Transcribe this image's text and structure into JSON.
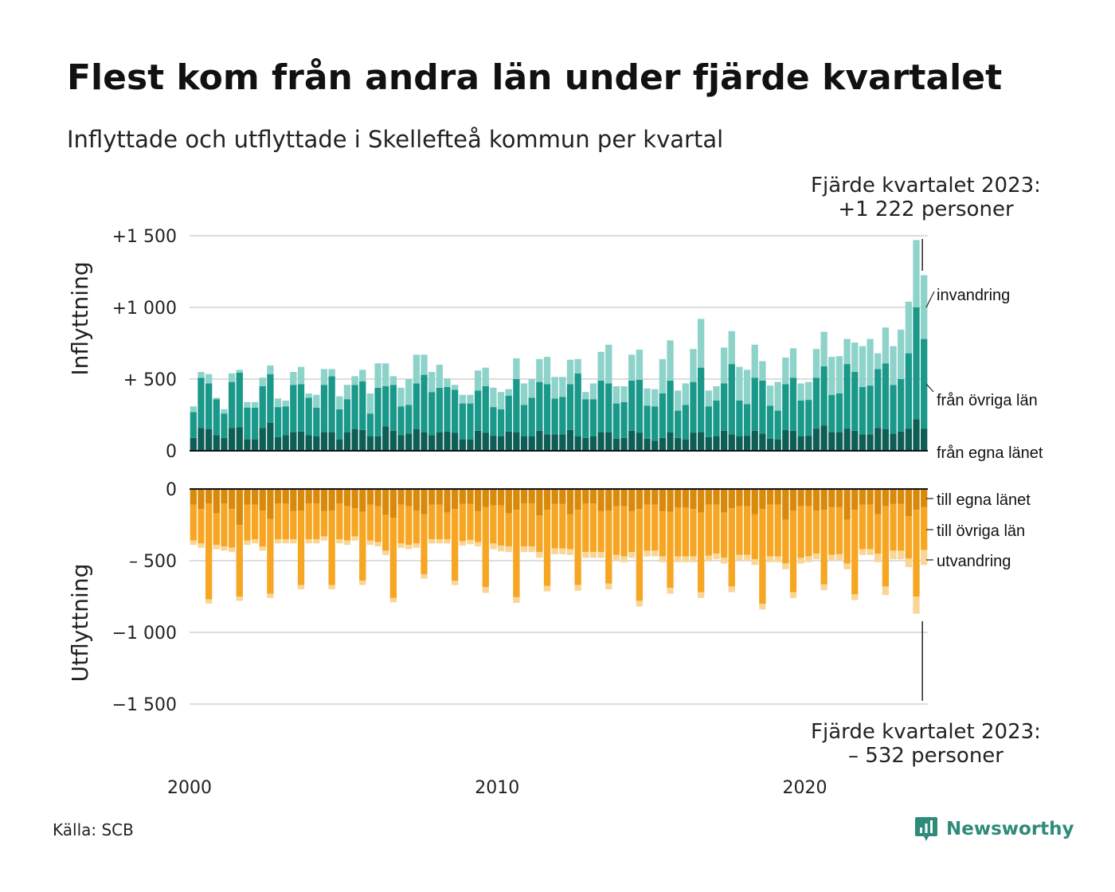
{
  "title": "Flest kom från andra län under fjärde kvartalet",
  "subtitle": "Inflyttade och utflyttade i Skellefteå kommun per kvartal",
  "source": "Källa: SCB",
  "brand": "Newsworthy",
  "annotation_top": {
    "line1": "Fjärde kvartalet 2023:",
    "line2": "+1 222 personer"
  },
  "annotation_bottom": {
    "line1": "Fjärde kvartalet 2023:",
    "line2": "–  532 personer"
  },
  "colors": {
    "in_own": "#0e5e55",
    "in_other": "#1a988a",
    "in_immigration": "#8dd3ca",
    "out_own": "#d98a0b",
    "out_other": "#f6a623",
    "out_emigration": "#f9d596",
    "grid": "#dddddd",
    "axis": "#111111"
  },
  "chart_data": {
    "type": "bar",
    "stacked": true,
    "x_ticks": [
      "2000",
      "2010",
      "2020"
    ],
    "x_start": "2000 Q1",
    "x_end": "2023 Q4",
    "panels": [
      {
        "name": "Inflyttning",
        "ylabel": "Inflyttning",
        "ylim": [
          0,
          1500
        ],
        "y_ticks": [
          0,
          500,
          1000,
          1500
        ],
        "y_tick_labels": [
          "0",
          "+  500",
          "+1 000",
          "+1 500"
        ],
        "series": [
          {
            "name": "från egna länet",
            "values": [
              90,
              160,
              150,
              110,
              90,
              160,
              165,
              80,
              80,
              160,
              195,
              95,
              110,
              130,
              135,
              110,
              100,
              130,
              130,
              80,
              130,
              150,
              145,
              100,
              100,
              170,
              140,
              110,
              120,
              150,
              130,
              110,
              130,
              135,
              125,
              80,
              80,
              140,
              125,
              105,
              100,
              135,
              130,
              100,
              100,
              140,
              115,
              115,
              115,
              145,
              100,
              90,
              100,
              130,
              130,
              85,
              90,
              140,
              125,
              85,
              70,
              90,
              130,
              90,
              80,
              125,
              130,
              95,
              100,
              140,
              115,
              100,
              105,
              140,
              120,
              85,
              80,
              145,
              140,
              100,
              105,
              155,
              175,
              130,
              130,
              155,
              140,
              115,
              115,
              160,
              150,
              120,
              135,
              155,
              220,
              155
            ]
          },
          {
            "name": "från övriga län",
            "values": [
              180,
              350,
              320,
              250,
              170,
              320,
              380,
              220,
              220,
              290,
              340,
              210,
              200,
              330,
              330,
              260,
              200,
              330,
              390,
              210,
              230,
              310,
              340,
              160,
              340,
              280,
              320,
              200,
              200,
              320,
              400,
              300,
              310,
              310,
              300,
              250,
              250,
              280,
              325,
              200,
              190,
              250,
              370,
              220,
              270,
              340,
              350,
              250,
              260,
              320,
              440,
              270,
              260,
              360,
              340,
              245,
              250,
              350,
              370,
              230,
              240,
              310,
              360,
              190,
              240,
              355,
              450,
              215,
              250,
              330,
              490,
              250,
              220,
              370,
              370,
              230,
              200,
              320,
              370,
              250,
              250,
              355,
              415,
              260,
              270,
              450,
              410,
              330,
              340,
              410,
              460,
              340,
              365,
              525,
              780,
              625
            ]
          },
          {
            "name": "invandring",
            "values": [
              40,
              40,
              65,
              10,
              30,
              60,
              20,
              40,
              40,
              60,
              60,
              60,
              40,
              90,
              120,
              30,
              90,
              110,
              50,
              90,
              100,
              60,
              80,
              140,
              170,
              160,
              60,
              130,
              180,
              200,
              140,
              140,
              160,
              60,
              35,
              60,
              60,
              140,
              130,
              135,
              120,
              45,
              145,
              150,
              130,
              160,
              190,
              150,
              140,
              170,
              100,
              50,
              110,
              200,
              270,
              120,
              110,
              180,
              210,
              120,
              120,
              240,
              280,
              140,
              150,
              230,
              340,
              110,
              100,
              250,
              230,
              235,
              240,
              230,
              135,
              140,
              200,
              185,
              205,
              120,
              125,
              200,
              240,
              265,
              260,
              175,
              205,
              285,
              325,
              110,
              250,
              270,
              345,
              360,
              470,
              445
            ]
          }
        ]
      },
      {
        "name": "Utflyttning",
        "ylabel": "Utflyttning",
        "ylim": [
          -1500,
          0
        ],
        "y_ticks": [
          0,
          -500,
          -1000,
          -1500
        ],
        "y_tick_labels": [
          "0",
          "–  500",
          "−1 000",
          "−1 500"
        ],
        "series": [
          {
            "name": "till egna länet",
            "values": [
              -110,
              -140,
              -100,
              -170,
              -100,
              -140,
              -250,
              -110,
              -110,
              -150,
              -210,
              -100,
              -100,
              -155,
              -150,
              -100,
              -100,
              -155,
              -150,
              -100,
              -120,
              -135,
              -160,
              -110,
              -120,
              -180,
              -200,
              -110,
              -120,
              -150,
              -175,
              -110,
              -110,
              -165,
              -140,
              -105,
              -105,
              -155,
              -125,
              -115,
              -115,
              -170,
              -145,
              -100,
              -100,
              -185,
              -145,
              -105,
              -105,
              -175,
              -145,
              -100,
              -100,
              -155,
              -150,
              -120,
              -120,
              -155,
              -140,
              -110,
              -110,
              -155,
              -160,
              -130,
              -130,
              -140,
              -165,
              -110,
              -110,
              -165,
              -135,
              -120,
              -120,
              -175,
              -140,
              -110,
              -110,
              -215,
              -150,
              -120,
              -120,
              -150,
              -145,
              -125,
              -125,
              -215,
              -145,
              -110,
              -110,
              -175,
              -120,
              -105,
              -105,
              -190,
              -145,
              -125
            ]
          },
          {
            "name": "till övriga län",
            "values": [
              -250,
              -240,
              -670,
              -220,
              -300,
              -270,
              -500,
              -250,
              -240,
              -250,
              -520,
              -250,
              -250,
              -195,
              -520,
              -250,
              -250,
              -175,
              -520,
              -250,
              -240,
              -195,
              -480,
              -250,
              -250,
              -250,
              -560,
              -270,
              -270,
              -230,
              -420,
              -240,
              -240,
              -185,
              -500,
              -260,
              -250,
              -215,
              -560,
              -265,
              -280,
              -230,
              -610,
              -300,
              -300,
              -255,
              -530,
              -310,
              -310,
              -245,
              -525,
              -340,
              -340,
              -285,
              -510,
              -340,
              -350,
              -285,
              -640,
              -320,
              -320,
              -315,
              -530,
              -340,
              -340,
              -330,
              -555,
              -355,
              -340,
              -315,
              -545,
              -340,
              -340,
              -315,
              -660,
              -360,
              -360,
              -305,
              -570,
              -360,
              -350,
              -300,
              -520,
              -335,
              -330,
              -305,
              -590,
              -310,
              -310,
              -275,
              -560,
              -325,
              -325,
              -295,
              -605,
              -300
            ]
          },
          {
            "name": "utvandring",
            "values": [
              -30,
              -30,
              -30,
              -30,
              -30,
              -30,
              -30,
              -30,
              -30,
              -30,
              -30,
              -30,
              -30,
              -30,
              -30,
              -30,
              -30,
              -30,
              -30,
              -30,
              -30,
              -30,
              -30,
              -30,
              -30,
              -30,
              -30,
              -30,
              -30,
              -30,
              -30,
              -30,
              -30,
              -30,
              -30,
              -30,
              -30,
              -30,
              -40,
              -40,
              -40,
              -40,
              -40,
              -40,
              -40,
              -40,
              -40,
              -40,
              -40,
              -40,
              -40,
              -40,
              -40,
              -40,
              -40,
              -40,
              -40,
              -40,
              -40,
              -40,
              -40,
              -40,
              -40,
              -40,
              -40,
              -40,
              -40,
              -40,
              -40,
              -40,
              -40,
              -40,
              -40,
              -40,
              -40,
              -40,
              -40,
              -40,
              -40,
              -40,
              -40,
              -40,
              -40,
              -40,
              -40,
              -40,
              -40,
              -40,
              -40,
              -60,
              -60,
              -60,
              -60,
              -60,
              -120,
              -105
            ]
          }
        ]
      }
    ],
    "last_quarter_labels": {
      "in": [
        "invandring",
        "från övriga län",
        "från egna länet"
      ],
      "out": [
        "till egna länet",
        "till övriga län",
        "utvandring"
      ]
    }
  }
}
